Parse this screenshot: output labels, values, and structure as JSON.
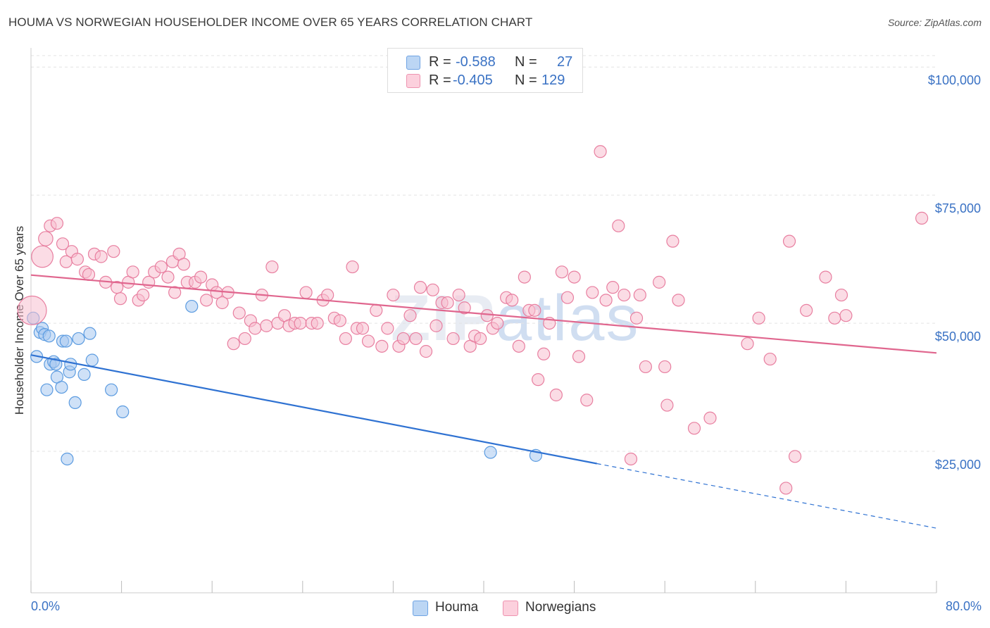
{
  "title": "HOUMA VS NORWEGIAN HOUSEHOLDER INCOME OVER 65 YEARS CORRELATION CHART",
  "source": "Source: ZipAtlas.com",
  "watermark": {
    "zip": "ZIP",
    "atlas": "atlas"
  },
  "legend": {
    "houma": {
      "r_label": "R =",
      "r_value": "-0.588",
      "n_label": "N =",
      "n_value": "27"
    },
    "norwegians": {
      "r_label": "R =",
      "r_value": "-0.405",
      "n_label": "N =",
      "n_value": "129"
    }
  },
  "bottom_legend": {
    "houma": "Houma",
    "norwegians": "Norwegians"
  },
  "x_axis": {
    "min_label": "0.0%",
    "max_label": "80.0%"
  },
  "chart_data": {
    "type": "scatter",
    "title": "HOUMA VS NORWEGIAN HOUSEHOLDER INCOME OVER 65 YEARS CORRELATION CHART",
    "xlabel": "",
    "ylabel": "Householder Income Over 65 years",
    "xlim": [
      0,
      80
    ],
    "ylim": [
      0,
      105000
    ],
    "y_ticks": [
      {
        "value": 25000,
        "label": "$25,000"
      },
      {
        "value": 50000,
        "label": "$50,000"
      },
      {
        "value": 75000,
        "label": "$75,000"
      },
      {
        "value": 100000,
        "label": "$100,000"
      }
    ],
    "grid": true,
    "series": [
      {
        "name": "Houma",
        "color": "#5b9be0",
        "fill": "#a8c8f0",
        "trend": {
          "x0": 0,
          "y0": 43800,
          "x1": 50,
          "y1": 22600,
          "dashed_to_x": 80,
          "dashed_to_y": 10000
        },
        "points": [
          [
            0.2,
            51000,
            1
          ],
          [
            0.5,
            43500,
            1
          ],
          [
            0.8,
            48200,
            1
          ],
          [
            1.0,
            49000,
            1
          ],
          [
            1.2,
            47800,
            1
          ],
          [
            1.4,
            37000,
            1
          ],
          [
            1.6,
            47500,
            1
          ],
          [
            1.7,
            42000,
            1
          ],
          [
            2.0,
            42500,
            1
          ],
          [
            2.2,
            42000,
            1
          ],
          [
            2.3,
            39500,
            1
          ],
          [
            2.7,
            37500,
            1
          ],
          [
            2.8,
            46500,
            1
          ],
          [
            3.1,
            46500,
            1
          ],
          [
            3.2,
            23500,
            1
          ],
          [
            3.4,
            40500,
            1
          ],
          [
            3.5,
            42000,
            1
          ],
          [
            3.9,
            34500,
            1
          ],
          [
            4.2,
            47000,
            1
          ],
          [
            4.7,
            40000,
            1
          ],
          [
            5.2,
            48000,
            1
          ],
          [
            5.4,
            42800,
            1
          ],
          [
            7.1,
            37000,
            1
          ],
          [
            8.1,
            32700,
            1
          ],
          [
            14.2,
            53300,
            1
          ],
          [
            40.6,
            24800,
            1
          ],
          [
            44.6,
            24200,
            1
          ]
        ]
      },
      {
        "name": "Norwegians",
        "color": "#e87fa0",
        "fill": "#f8c0d0",
        "trend": {
          "x0": 0,
          "y0": 59400,
          "x1": 80,
          "y1": 44200
        },
        "points": [
          [
            0.1,
            52500,
            2.4
          ],
          [
            1.0,
            63000,
            1.8
          ],
          [
            1.3,
            66500,
            1.2
          ],
          [
            1.7,
            69000,
            1
          ],
          [
            2.3,
            69500,
            1
          ],
          [
            2.8,
            65500,
            1
          ],
          [
            3.1,
            62000,
            1
          ],
          [
            3.6,
            64000,
            1
          ],
          [
            4.1,
            62500,
            1
          ],
          [
            4.8,
            60000,
            1
          ],
          [
            5.1,
            59500,
            1
          ],
          [
            5.6,
            63500,
            1
          ],
          [
            6.2,
            63000,
            1
          ],
          [
            6.6,
            58000,
            1
          ],
          [
            7.3,
            64000,
            1
          ],
          [
            7.6,
            57000,
            1
          ],
          [
            7.9,
            54800,
            1
          ],
          [
            8.6,
            58000,
            1
          ],
          [
            9.0,
            60000,
            1
          ],
          [
            9.5,
            54500,
            1
          ],
          [
            9.9,
            55500,
            1
          ],
          [
            10.4,
            58000,
            1
          ],
          [
            10.9,
            60000,
            1
          ],
          [
            11.5,
            61000,
            1
          ],
          [
            12.1,
            59000,
            1
          ],
          [
            12.5,
            62000,
            1
          ],
          [
            12.7,
            56000,
            1
          ],
          [
            13.1,
            63500,
            1
          ],
          [
            13.5,
            61500,
            1
          ],
          [
            13.8,
            58000,
            1
          ],
          [
            14.5,
            58000,
            1
          ],
          [
            15.0,
            59000,
            1
          ],
          [
            15.5,
            54500,
            1
          ],
          [
            16.0,
            57500,
            1
          ],
          [
            16.4,
            56000,
            1
          ],
          [
            16.9,
            54000,
            1
          ],
          [
            17.4,
            56000,
            1
          ],
          [
            17.9,
            46000,
            1
          ],
          [
            18.4,
            52000,
            1
          ],
          [
            18.9,
            47000,
            1
          ],
          [
            19.4,
            50500,
            1
          ],
          [
            19.8,
            49000,
            1
          ],
          [
            20.4,
            55500,
            1
          ],
          [
            20.8,
            49500,
            1
          ],
          [
            21.3,
            61000,
            1
          ],
          [
            21.8,
            50000,
            1
          ],
          [
            22.4,
            51500,
            1
          ],
          [
            22.8,
            49500,
            1
          ],
          [
            23.3,
            50000,
            1
          ],
          [
            23.8,
            50000,
            1
          ],
          [
            24.3,
            56000,
            1
          ],
          [
            24.8,
            50000,
            1
          ],
          [
            25.3,
            50000,
            1
          ],
          [
            25.8,
            54500,
            1
          ],
          [
            26.2,
            55500,
            1
          ],
          [
            26.8,
            51000,
            1
          ],
          [
            27.3,
            50500,
            1
          ],
          [
            27.8,
            47000,
            1
          ],
          [
            28.4,
            61000,
            1
          ],
          [
            28.8,
            49000,
            1
          ],
          [
            29.3,
            49000,
            1
          ],
          [
            29.8,
            46500,
            1
          ],
          [
            30.5,
            52500,
            1
          ],
          [
            31.0,
            45500,
            1
          ],
          [
            31.5,
            49000,
            1
          ],
          [
            32.0,
            55500,
            1
          ],
          [
            32.5,
            45500,
            1
          ],
          [
            32.9,
            47000,
            1
          ],
          [
            33.5,
            51500,
            1
          ],
          [
            34.0,
            47000,
            1
          ],
          [
            34.4,
            57000,
            1
          ],
          [
            34.9,
            44500,
            1
          ],
          [
            35.5,
            56500,
            1
          ],
          [
            35.8,
            49500,
            1
          ],
          [
            36.3,
            54000,
            1
          ],
          [
            36.8,
            54000,
            1
          ],
          [
            37.3,
            47000,
            1
          ],
          [
            37.8,
            55500,
            1
          ],
          [
            38.3,
            53000,
            1
          ],
          [
            38.8,
            45500,
            1
          ],
          [
            39.2,
            47500,
            1
          ],
          [
            39.7,
            47000,
            1
          ],
          [
            40.3,
            51500,
            1
          ],
          [
            40.8,
            49000,
            1
          ],
          [
            41.2,
            50000,
            1
          ],
          [
            42.0,
            55000,
            1
          ],
          [
            42.5,
            54500,
            1
          ],
          [
            43.1,
            45500,
            1
          ],
          [
            43.6,
            59000,
            1
          ],
          [
            44.0,
            52500,
            1
          ],
          [
            44.5,
            52500,
            1
          ],
          [
            44.8,
            39000,
            1
          ],
          [
            45.3,
            44000,
            1
          ],
          [
            45.8,
            50000,
            1
          ],
          [
            46.4,
            36000,
            1
          ],
          [
            46.9,
            60000,
            1
          ],
          [
            47.4,
            55000,
            1
          ],
          [
            48.0,
            59000,
            1
          ],
          [
            48.4,
            43500,
            1
          ],
          [
            49.1,
            35000,
            1
          ],
          [
            49.6,
            56000,
            1
          ],
          [
            50.3,
            83500,
            1
          ],
          [
            50.8,
            54500,
            1
          ],
          [
            51.4,
            57000,
            1
          ],
          [
            51.9,
            69000,
            1
          ],
          [
            52.4,
            55500,
            1
          ],
          [
            53.0,
            23500,
            1
          ],
          [
            53.5,
            51000,
            1
          ],
          [
            53.8,
            55500,
            1
          ],
          [
            54.3,
            41500,
            1
          ],
          [
            55.5,
            58000,
            1
          ],
          [
            56.0,
            41500,
            1
          ],
          [
            56.2,
            34000,
            1
          ],
          [
            56.7,
            66000,
            1
          ],
          [
            57.2,
            54500,
            1
          ],
          [
            58.6,
            29500,
            1
          ],
          [
            60.0,
            31500,
            1
          ],
          [
            63.3,
            46000,
            1
          ],
          [
            64.3,
            51000,
            1
          ],
          [
            65.3,
            43000,
            1
          ],
          [
            67.0,
            66000,
            1
          ],
          [
            67.5,
            24000,
            1
          ],
          [
            66.7,
            17800,
            1
          ],
          [
            68.5,
            52500,
            1
          ],
          [
            70.2,
            59000,
            1
          ],
          [
            71.0,
            51000,
            1
          ],
          [
            71.6,
            55500,
            1
          ],
          [
            72.0,
            51500,
            1
          ],
          [
            78.7,
            70500,
            1
          ]
        ]
      }
    ]
  }
}
